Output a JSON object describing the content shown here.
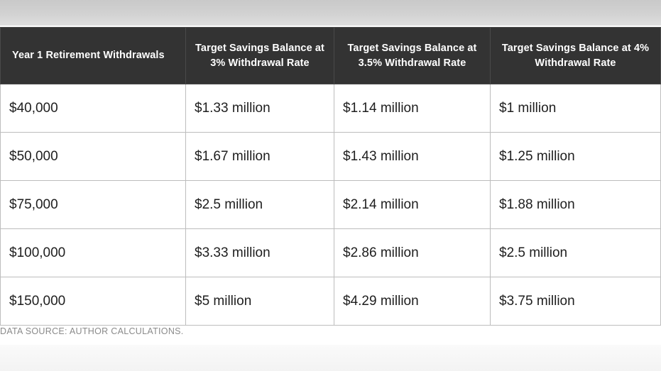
{
  "table": {
    "headers": [
      "Year 1 Retirement Withdrawals",
      "Target Savings Balance at 3% Withdrawal Rate",
      "Target Savings Balance at 3.5% Withdrawal Rate",
      "Target Savings Balance at 4% Withdrawal Rate"
    ],
    "rows": [
      [
        "$40,000",
        "$1.33 million",
        "$1.14 million",
        "$1 million"
      ],
      [
        "$50,000",
        "$1.67 million",
        "$1.43 million",
        "$1.25 million"
      ],
      [
        "$75,000",
        "$2.5 million",
        "$2.14 million",
        "$1.88 million"
      ],
      [
        "$100,000",
        "$3.33 million",
        "$2.86 million",
        "$2.5 million"
      ],
      [
        "$150,000",
        "$5 million",
        "$4.29 million",
        "$3.75 million"
      ]
    ]
  },
  "source_note": "DATA SOURCE: AUTHOR CALCULATIONS.",
  "colors": {
    "header_background": "#333333",
    "header_text": "#ffffff",
    "cell_text": "#1e1e1e",
    "border": "#bdbdbd",
    "source_text": "#8a8a8a"
  },
  "chart_data": {
    "type": "table",
    "columns": [
      "Year 1 Retirement Withdrawals",
      "Target Savings Balance at 3% Withdrawal Rate",
      "Target Savings Balance at 3.5% Withdrawal Rate",
      "Target Savings Balance at 4% Withdrawal Rate"
    ],
    "rows": [
      [
        "$40,000",
        "$1.33 million",
        "$1.14 million",
        "$1 million"
      ],
      [
        "$50,000",
        "$1.67 million",
        "$1.43 million",
        "$1.25 million"
      ],
      [
        "$75,000",
        "$2.5 million",
        "$2.14 million",
        "$1.88 million"
      ],
      [
        "$100,000",
        "$3.33 million",
        "$2.86 million",
        "$2.5 million"
      ],
      [
        "$150,000",
        "$5 million",
        "$4.29 million",
        "$3.75 million"
      ]
    ],
    "annotations": [
      "DATA SOURCE: AUTHOR CALCULATIONS."
    ]
  }
}
